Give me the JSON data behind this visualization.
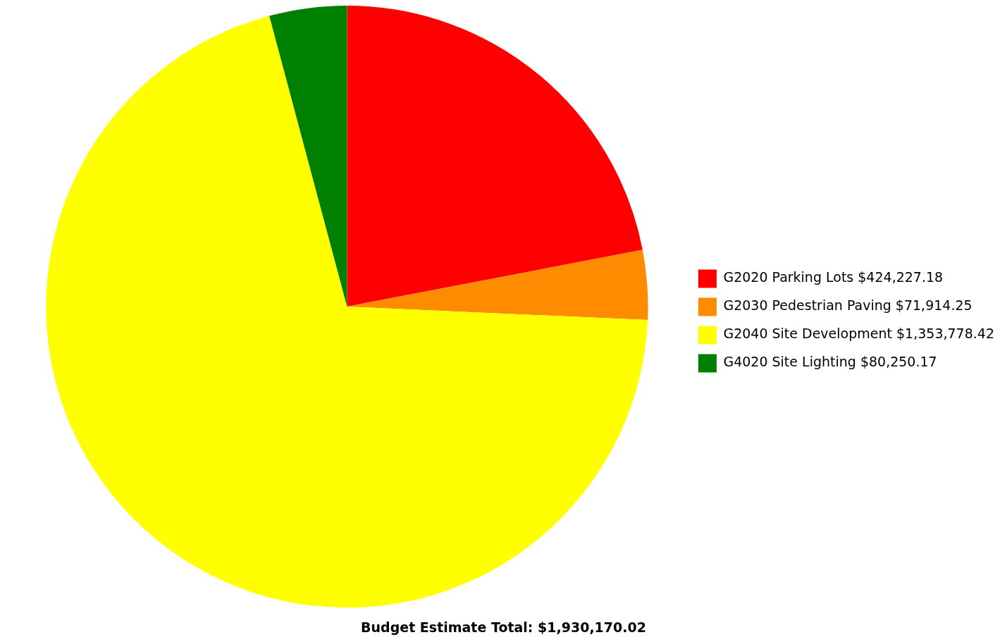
{
  "chart_data": {
    "type": "pie",
    "title": "Budget Estimate Total: $1,930,170.02",
    "categories": [
      "G2020 Parking Lots",
      "G2030 Pedestrian Paving",
      "G2040 Site Development",
      "G4020 Site Lighting"
    ],
    "values": [
      424227.18,
      71914.25,
      1353778.42,
      80250.17
    ],
    "value_labels": [
      "$424,227.18",
      "$71,914.25",
      "$1,353,778.42",
      "$80,250.17"
    ],
    "colors": [
      "#ff0000",
      "#ff8c00",
      "#ffff00",
      "#008000"
    ],
    "legend": "right"
  }
}
